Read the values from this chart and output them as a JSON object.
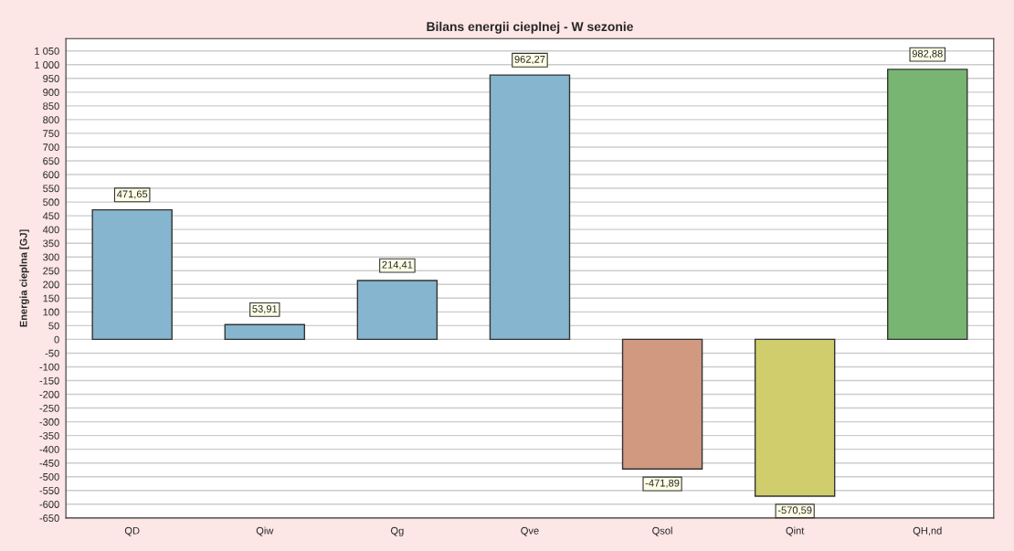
{
  "chart_data": {
    "type": "bar",
    "title": "Bilans energii cieplnej - W sezonie",
    "ylabel": "Energia cieplna [GJ]",
    "categories": [
      "QD",
      "Qiw",
      "Qg",
      "Qve",
      "Qsol",
      "Qint",
      "QH,nd"
    ],
    "values": [
      471.65,
      53.91,
      214.41,
      962.27,
      -471.89,
      -570.59,
      982.88
    ],
    "value_labels": [
      "471,65",
      "53,91",
      "214,41",
      "962,27",
      "-471,89",
      "-570,59",
      "982,88"
    ],
    "colors": [
      "#86b5cf",
      "#86b5cf",
      "#86b5cf",
      "#86b5cf",
      "#d19a80",
      "#cfcd6c",
      "#78b572"
    ],
    "ylim": [
      -650,
      1095
    ],
    "yticks": [
      -650,
      -600,
      -550,
      -500,
      -450,
      -400,
      -350,
      -300,
      -250,
      -200,
      -150,
      -100,
      -50,
      0,
      50,
      100,
      150,
      200,
      250,
      300,
      350,
      400,
      450,
      500,
      550,
      600,
      650,
      700,
      750,
      800,
      850,
      900,
      950,
      {
        "value": 1000,
        "label": "1 000"
      },
      {
        "value": 1050,
        "label": "1 050"
      }
    ],
    "grid": "y"
  }
}
